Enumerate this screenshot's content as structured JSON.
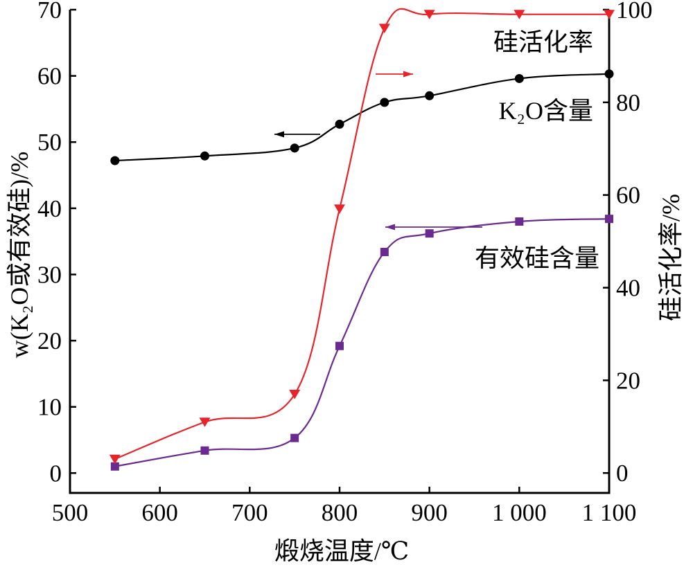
{
  "chart_data": {
    "type": "line",
    "xlabel": "煅烧温度/℃",
    "ylabel_left": "w(K₂O或有效硅)/%",
    "ylabel_right": "硅活化率/%",
    "xlim": [
      500,
      1100
    ],
    "ylim_left": [
      -3,
      70
    ],
    "ylim_right": [
      -4.3,
      100
    ],
    "x_ticks": [
      500,
      600,
      700,
      800,
      900,
      1000,
      1100
    ],
    "x_tick_labels": [
      "500",
      "600",
      "700",
      "800",
      "900",
      "1 000",
      "1 100"
    ],
    "y_left_ticks": [
      0,
      10,
      20,
      30,
      40,
      50,
      60,
      70
    ],
    "y_left_tick_labels": [
      "0",
      "10",
      "20",
      "30",
      "40",
      "50",
      "60",
      "70"
    ],
    "y_right_ticks": [
      0,
      20,
      40,
      60,
      80,
      100
    ],
    "y_right_tick_labels": [
      "0",
      "20",
      "40",
      "60",
      "80",
      "100"
    ],
    "grid": false,
    "series": [
      {
        "name": "K₂O含量",
        "axis": "left",
        "color": "#000000",
        "marker": "circle",
        "x": [
          550,
          650,
          750,
          800,
          850,
          900,
          1000,
          1100
        ],
        "y": [
          47.2,
          47.9,
          49.1,
          52.7,
          56.0,
          57.0,
          59.6,
          60.3
        ]
      },
      {
        "name": "有效硅含量",
        "axis": "left",
        "color": "#6a2a8f",
        "marker": "square",
        "x": [
          550,
          650,
          750,
          800,
          850,
          900,
          1000,
          1100
        ],
        "y": [
          1.0,
          3.4,
          5.3,
          19.2,
          33.4,
          36.2,
          38.0,
          38.4
        ]
      },
      {
        "name": "硅活化率",
        "axis": "right",
        "color": "#e8232a",
        "marker": "triangle-down",
        "x": [
          550,
          650,
          750,
          800,
          850,
          900,
          1000,
          1100
        ],
        "y": [
          3,
          11,
          17,
          57,
          96,
          99,
          99,
          99
        ]
      }
    ],
    "annotations": [
      {
        "text": "硅活化率",
        "series": "硅活化率",
        "arrow": "right",
        "x": 850,
        "y": 96
      },
      {
        "text": "K₂O含量",
        "series": "K₂O含量",
        "arrow": "left",
        "x": 1000,
        "y": 62
      },
      {
        "text": "有效硅含量",
        "series": "有效硅含量",
        "arrow": "left",
        "x": 1000,
        "y": 41
      }
    ]
  }
}
